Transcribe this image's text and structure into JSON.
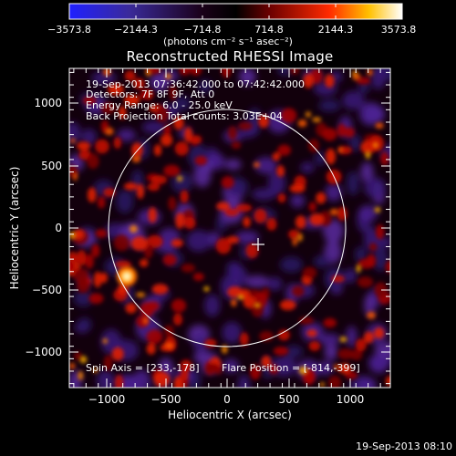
{
  "colorbar": {
    "ticks": [
      "−3573.8",
      "−2144.3",
      "−714.8",
      "714.8",
      "2144.3",
      "3573.8"
    ],
    "units": "(photons cm⁻² s⁻¹ asec⁻²)"
  },
  "plot": {
    "title": "Reconstructed RHESSI Image",
    "info": {
      "line1": "19-Sep-2013 07:36:42.000 to 07:42:42.000",
      "line2": "Detectors: 7F 8F 9F, Att 0",
      "line3": "Energy Range: 6.0 - 25.0 keV",
      "line4": "Back Projection    Total counts: 3.03E+04"
    },
    "spin_axis": "Spin Axis = [233,-178]",
    "flare_position": "Flare Position = [-814,-399]",
    "xlabel": "Heliocentric X (arcsec)",
    "ylabel": "Heliocentric Y (arcsec)",
    "xticks": [
      "−1000",
      "−500",
      "0",
      "500",
      "1000"
    ],
    "yticks": [
      "1000",
      "500",
      "0",
      "−500",
      "−1000"
    ],
    "xrange_arcsec": [
      -1290,
      1290
    ],
    "yrange_arcsec": [
      -1240,
      1240
    ]
  },
  "footer": "19-Sep-2013 08:10",
  "colors": {
    "colormap": [
      "#2020ff",
      "#3b1d8f",
      "#000000",
      "#6a0000",
      "#ff2200",
      "#ffd000",
      "#ffffff"
    ]
  }
}
